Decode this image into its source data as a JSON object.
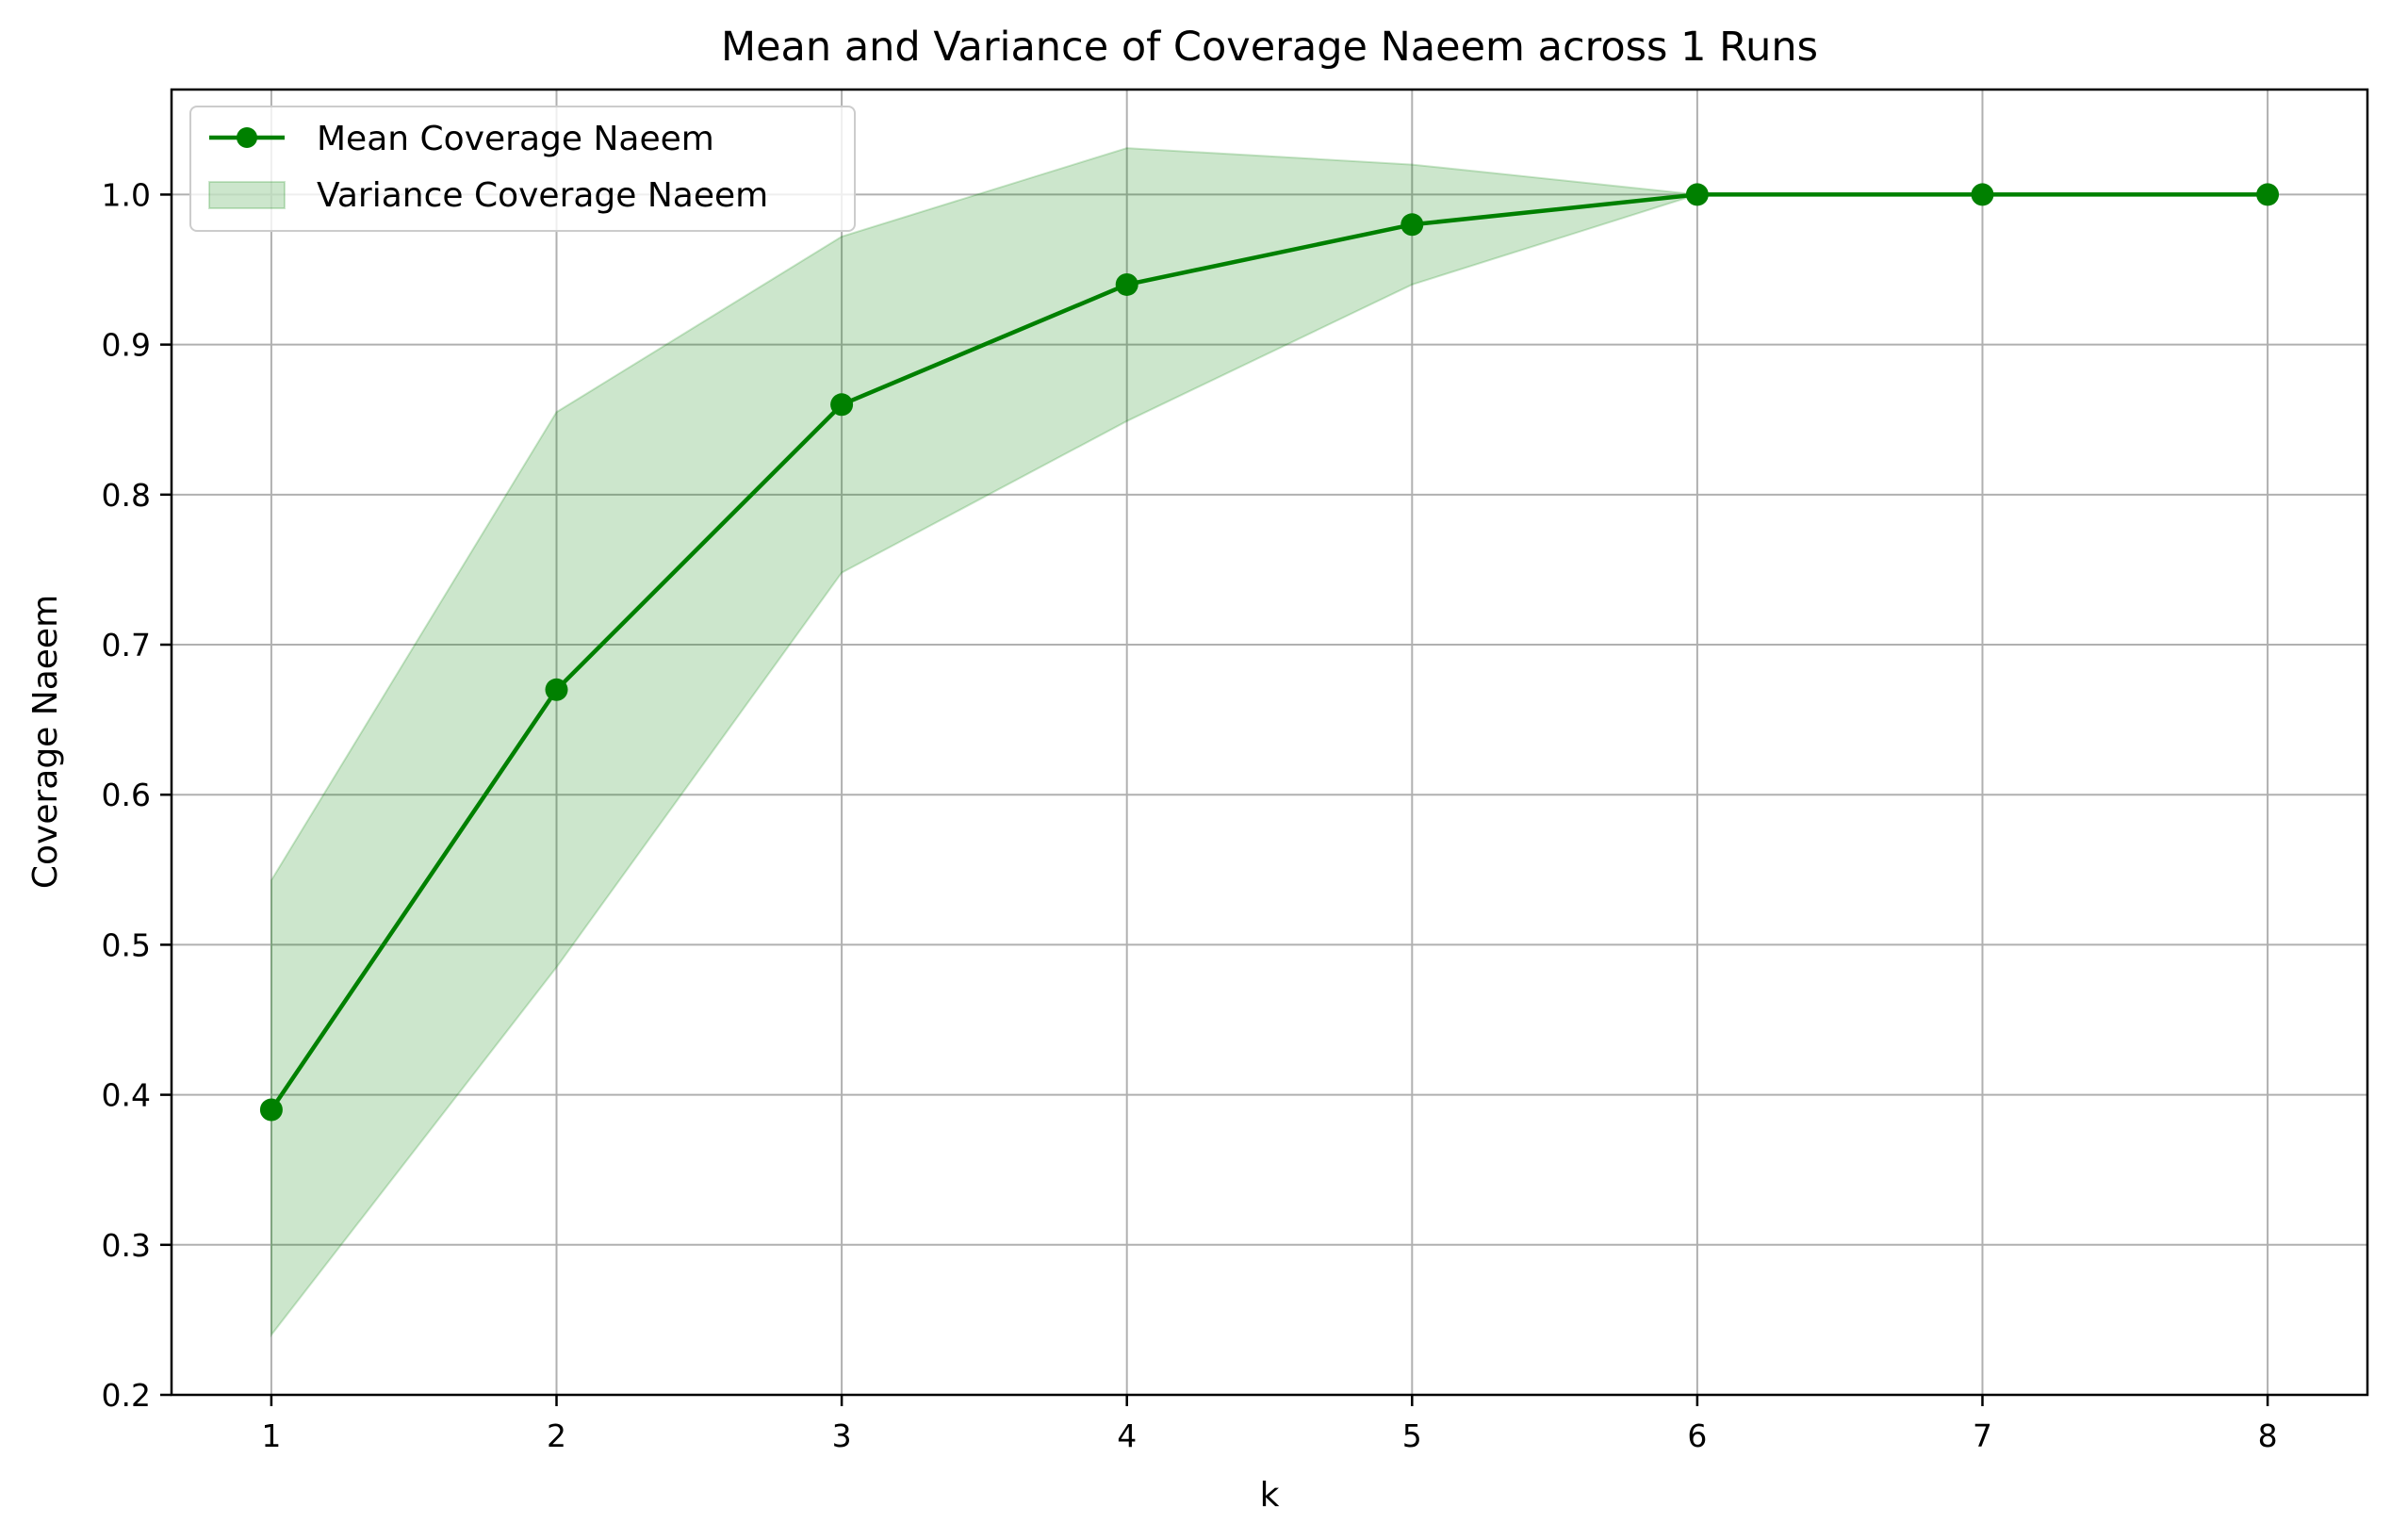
{
  "chart_data": {
    "type": "line",
    "title": "Mean and Variance of Coverage Naeem across 1 Runs",
    "xlabel": "k",
    "ylabel": "Coverage Naeem",
    "x": [
      1,
      2,
      3,
      4,
      5,
      6,
      7,
      8
    ],
    "xticks": [
      "1",
      "2",
      "3",
      "4",
      "5",
      "6",
      "7",
      "8"
    ],
    "yticks": [
      "0.2",
      "0.3",
      "0.4",
      "0.5",
      "0.6",
      "0.7",
      "0.8",
      "0.9",
      "1.0"
    ],
    "ytick_values": [
      0.2,
      0.3,
      0.4,
      0.5,
      0.6,
      0.7,
      0.8,
      0.9,
      1.0
    ],
    "xlim": [
      0.65,
      8.35
    ],
    "ylim": [
      0.2,
      1.07
    ],
    "series": [
      {
        "name": "Mean Coverage Naeem",
        "kind": "line-markers",
        "color": "#008000",
        "values": [
          0.39,
          0.67,
          0.86,
          0.94,
          0.98,
          1.0,
          1.0,
          1.0
        ]
      },
      {
        "name": "Variance Coverage Naeem",
        "kind": "band",
        "color": "#008000",
        "opacity": 0.2,
        "lower": [
          0.24,
          0.485,
          0.748,
          0.849,
          0.94,
          1.0,
          1.0,
          1.0
        ],
        "upper": [
          0.543,
          0.855,
          0.972,
          1.031,
          1.02,
          1.0,
          1.0,
          1.0
        ]
      }
    ],
    "grid": true,
    "legend_position": "upper-left"
  }
}
